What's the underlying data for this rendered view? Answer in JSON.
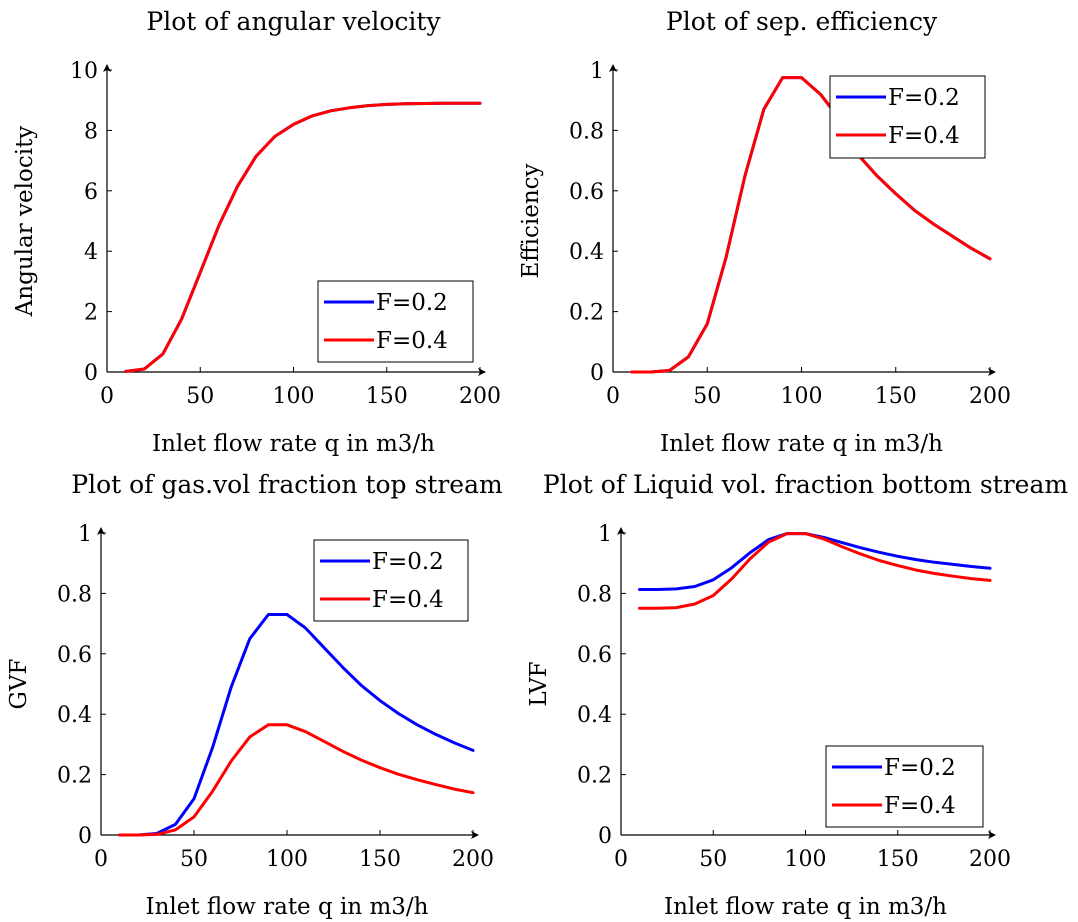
{
  "chart_data": [
    {
      "type": "line",
      "title": "Plot of angular velocity",
      "xlabel": "Inlet flow rate q in m3/h",
      "ylabel": "Angular velocity",
      "xlim": [
        0,
        200
      ],
      "ylim": [
        0,
        10
      ],
      "xticks": [
        "0",
        "50",
        "100",
        "150",
        "200"
      ],
      "yticks": [
        "0",
        "2",
        "4",
        "6",
        "8",
        "10"
      ],
      "grid": false,
      "legend_position": "bottom-right",
      "x": [
        10,
        20,
        30,
        40,
        50,
        60,
        70,
        80,
        90,
        100,
        110,
        120,
        130,
        140,
        150,
        160,
        170,
        180,
        190,
        200
      ],
      "series": [
        {
          "name": "F=0.2",
          "color": "#0000ff",
          "values": [
            0.02,
            0.1,
            0.6,
            1.75,
            3.3,
            4.85,
            6.15,
            7.15,
            7.8,
            8.2,
            8.48,
            8.65,
            8.75,
            8.82,
            8.86,
            8.88,
            8.89,
            8.9,
            8.9,
            8.9
          ]
        },
        {
          "name": "F=0.4",
          "color": "#ff0000",
          "values": [
            0.02,
            0.1,
            0.6,
            1.75,
            3.3,
            4.85,
            6.15,
            7.15,
            7.8,
            8.2,
            8.48,
            8.65,
            8.75,
            8.82,
            8.86,
            8.88,
            8.89,
            8.9,
            8.9,
            8.9
          ]
        }
      ]
    },
    {
      "type": "line",
      "title": "Plot of sep. efficiency",
      "xlabel": "Inlet flow rate q in m3/h",
      "ylabel": "Efficiency",
      "xlim": [
        0,
        200
      ],
      "ylim": [
        0,
        1
      ],
      "xticks": [
        "0",
        "50",
        "100",
        "150",
        "200"
      ],
      "yticks": [
        "0",
        "0.2",
        "0.4",
        "0.6",
        "0.8",
        "1"
      ],
      "grid": false,
      "legend_position": "top-right",
      "x": [
        10,
        20,
        30,
        40,
        50,
        60,
        70,
        80,
        90,
        100,
        110,
        120,
        130,
        140,
        150,
        160,
        170,
        180,
        190,
        200
      ],
      "series": [
        {
          "name": "F=0.2",
          "color": "#0000ff",
          "values": [
            0.0,
            0.0,
            0.005,
            0.05,
            0.16,
            0.38,
            0.65,
            0.87,
            0.975,
            0.975,
            0.92,
            0.84,
            0.72,
            0.65,
            0.59,
            0.535,
            0.49,
            0.45,
            0.41,
            0.375
          ]
        },
        {
          "name": "F=0.4",
          "color": "#ff0000",
          "values": [
            0.0,
            0.0,
            0.005,
            0.05,
            0.16,
            0.38,
            0.65,
            0.87,
            0.975,
            0.975,
            0.92,
            0.84,
            0.72,
            0.65,
            0.59,
            0.535,
            0.49,
            0.45,
            0.41,
            0.375
          ]
        }
      ]
    },
    {
      "type": "line",
      "title": "Plot of gas.vol fraction top stream",
      "xlabel": "Inlet flow rate q in m3/h",
      "ylabel": "GVF",
      "xlim": [
        0,
        200
      ],
      "ylim": [
        0,
        1
      ],
      "xticks": [
        "0",
        "50",
        "100",
        "150",
        "200"
      ],
      "yticks": [
        "0",
        "0.2",
        "0.4",
        "0.6",
        "0.8",
        "1"
      ],
      "grid": false,
      "legend_position": "top-right",
      "x": [
        10,
        20,
        30,
        40,
        50,
        60,
        70,
        80,
        90,
        100,
        110,
        120,
        130,
        140,
        150,
        160,
        170,
        180,
        190,
        200
      ],
      "series": [
        {
          "name": "F=0.2",
          "color": "#0000ff",
          "values": [
            0.0,
            0.0,
            0.005,
            0.035,
            0.12,
            0.29,
            0.49,
            0.65,
            0.73,
            0.73,
            0.685,
            0.62,
            0.555,
            0.495,
            0.445,
            0.402,
            0.365,
            0.333,
            0.305,
            0.28
          ]
        },
        {
          "name": "F=0.4",
          "color": "#ff0000",
          "values": [
            0.0,
            0.0,
            0.002,
            0.017,
            0.06,
            0.145,
            0.245,
            0.325,
            0.365,
            0.365,
            0.342,
            0.31,
            0.277,
            0.248,
            0.223,
            0.201,
            0.183,
            0.167,
            0.152,
            0.14
          ]
        }
      ]
    },
    {
      "type": "line",
      "title": "Plot of Liquid vol. fraction bottom stream",
      "xlabel": "Inlet flow rate q in m3/h",
      "ylabel": "LVF",
      "xlim": [
        0,
        200
      ],
      "ylim": [
        0,
        1
      ],
      "xticks": [
        "0",
        "50",
        "100",
        "150",
        "200"
      ],
      "yticks": [
        "0",
        "0.2",
        "0.4",
        "0.6",
        "0.8",
        "1"
      ],
      "grid": false,
      "legend_position": "bottom-right",
      "x": [
        10,
        20,
        30,
        40,
        50,
        60,
        70,
        80,
        90,
        100,
        110,
        120,
        130,
        140,
        150,
        160,
        170,
        180,
        190,
        200
      ],
      "series": [
        {
          "name": "F=0.2",
          "color": "#0000ff",
          "values": [
            0.813,
            0.813,
            0.815,
            0.823,
            0.845,
            0.885,
            0.935,
            0.978,
            0.998,
            0.998,
            0.985,
            0.968,
            0.951,
            0.936,
            0.923,
            0.912,
            0.903,
            0.896,
            0.889,
            0.883
          ]
        },
        {
          "name": "F=0.4",
          "color": "#ff0000",
          "values": [
            0.751,
            0.751,
            0.753,
            0.765,
            0.793,
            0.848,
            0.915,
            0.97,
            0.998,
            0.998,
            0.98,
            0.954,
            0.93,
            0.909,
            0.892,
            0.877,
            0.866,
            0.857,
            0.849,
            0.843
          ]
        }
      ]
    }
  ]
}
